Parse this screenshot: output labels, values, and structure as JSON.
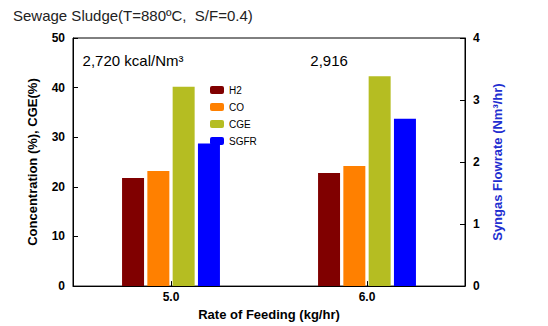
{
  "chart_data": {
    "type": "bar",
    "title": "Sewage Sludge(T=880ºC,  S/F=0.4)",
    "x_label": "Rate of Feeding (kg/hr)",
    "y_label": "Concentration (%), CGE(%)",
    "y2_label": "Syngas Flowrate (Nm³/hr)",
    "categories": [
      "5.0",
      "6.0"
    ],
    "series": [
      {
        "name": "H2",
        "color": "#800000",
        "values": [
          21.8,
          22.8
        ]
      },
      {
        "name": "CO",
        "color": "#ff8000",
        "values": [
          23.2,
          24.2
        ]
      },
      {
        "name": "CGE",
        "color": "#b5bd22",
        "values": [
          40.2,
          42.3
        ]
      },
      {
        "name": "SGFR",
        "color": "#0000ff",
        "values": [
          2.3,
          2.7
        ],
        "axis": "y2"
      }
    ],
    "annotations": [
      {
        "text": "2,720 kcal/Nm³",
        "category": "5.0"
      },
      {
        "text": "2,916",
        "category": "6.0"
      }
    ],
    "ylim": [
      0,
      50
    ],
    "yticks": [
      0,
      10,
      20,
      30,
      40,
      50
    ],
    "y2lim": [
      0,
      4
    ],
    "y2ticks": [
      0,
      1,
      2,
      3,
      4
    ],
    "grid": false,
    "legend": "top"
  }
}
